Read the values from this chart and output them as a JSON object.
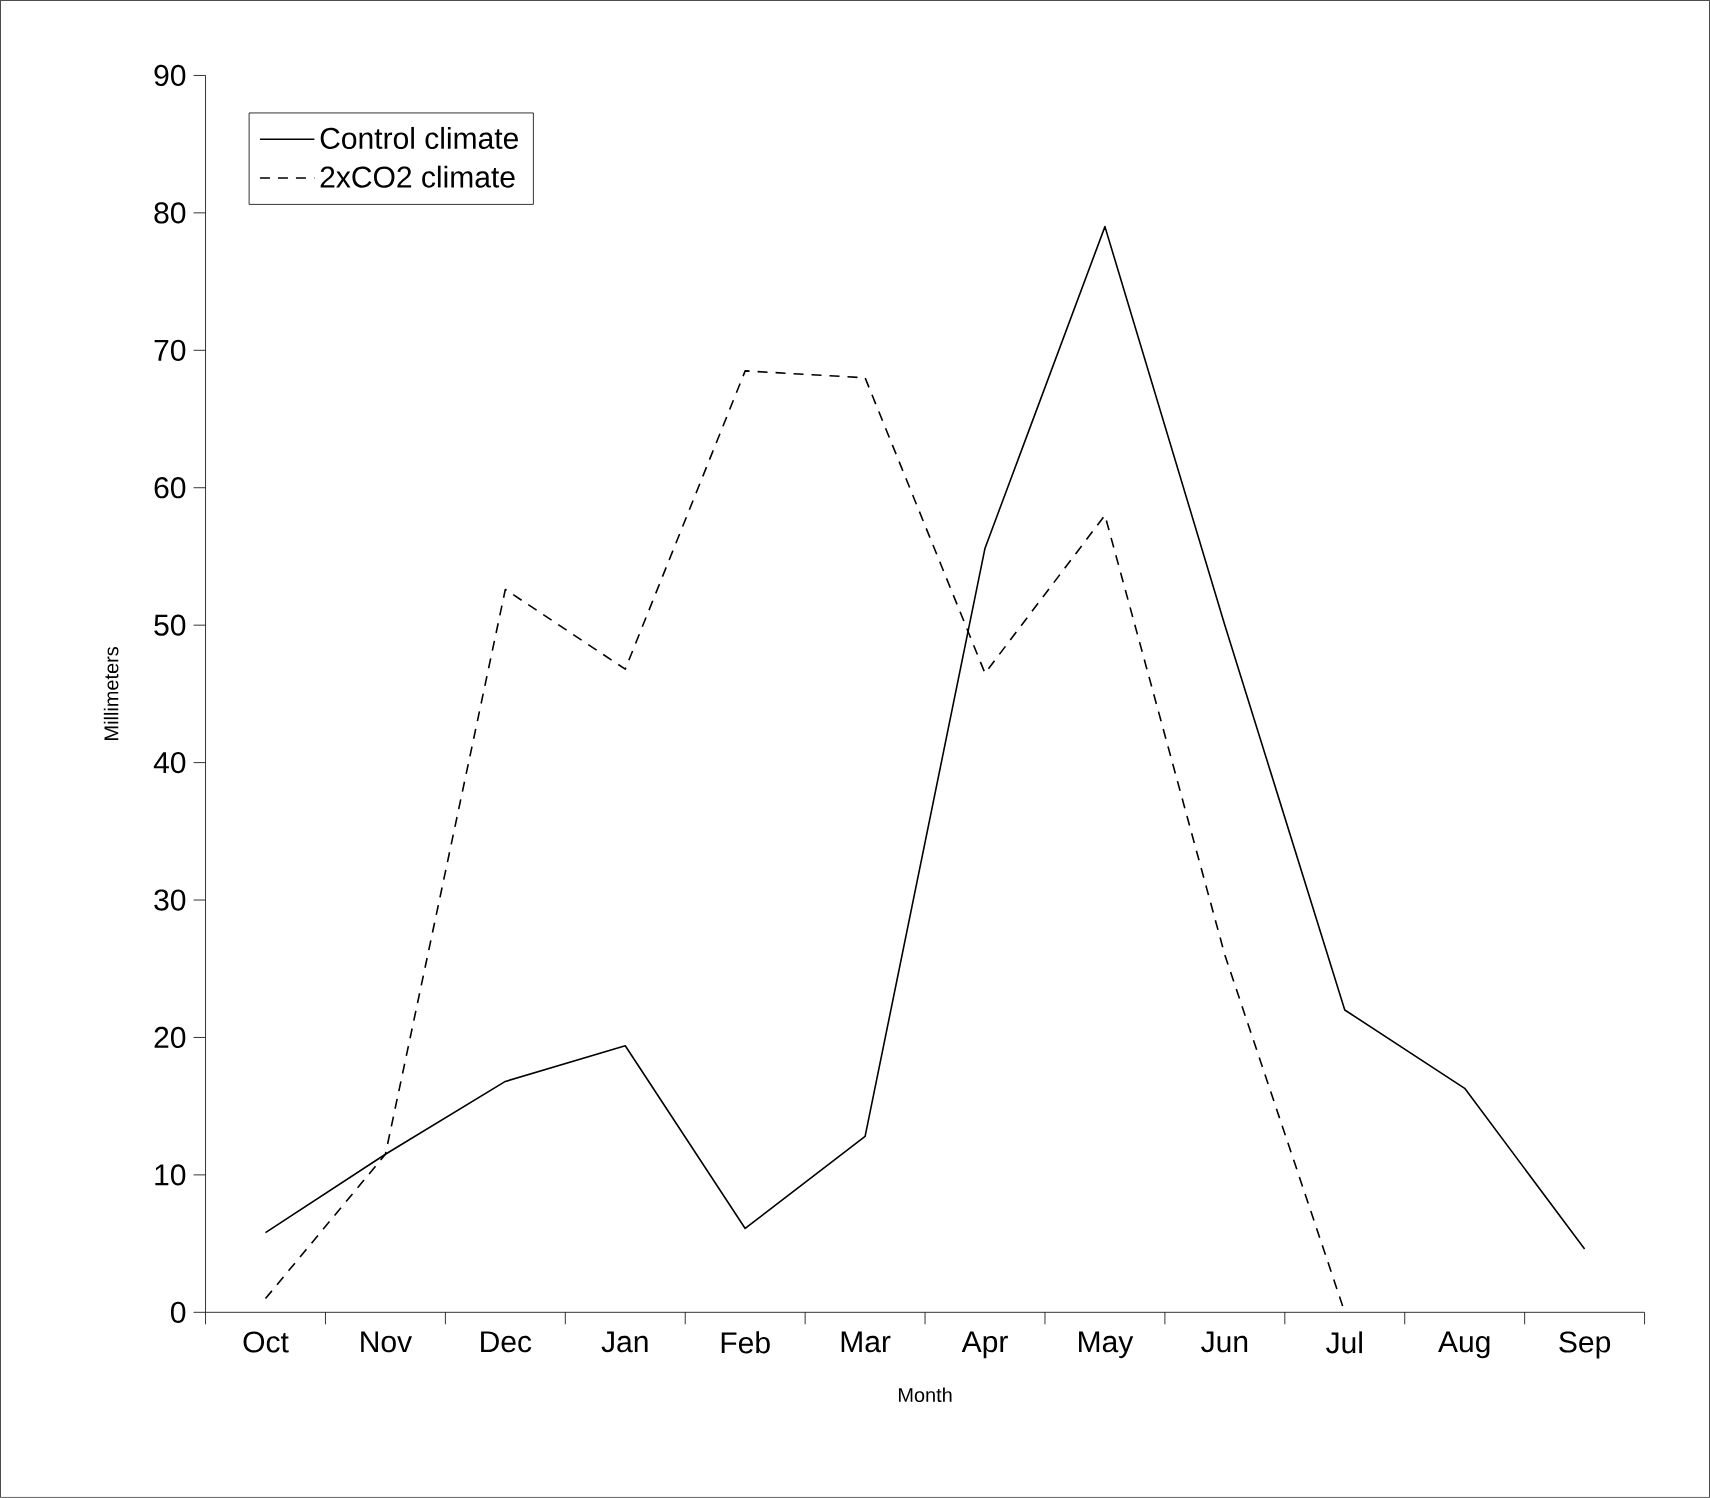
{
  "chart_data": {
    "type": "line",
    "xlabel": "Month",
    "ylabel": "Millimeters",
    "categories": [
      "Oct",
      "Nov",
      "Dec",
      "Jan",
      "Feb",
      "Mar",
      "Apr",
      "May",
      "Jun",
      "Jul",
      "Aug",
      "Sep"
    ],
    "series": [
      {
        "name": "Control climate",
        "color": "#000000",
        "line_style": "solid",
        "values": [
          5.8,
          11.5,
          16.8,
          19.4,
          6.1,
          12.8,
          55.6,
          79,
          50,
          22,
          16.3,
          4.6
        ]
      },
      {
        "name": "2xCO2 climate",
        "color": "#000000",
        "line_style": "dashed",
        "values": [
          1,
          11.5,
          52.6,
          46.8,
          68.5,
          68,
          46.5,
          58,
          26,
          0,
          null,
          null
        ]
      }
    ],
    "ylim": [
      0,
      90
    ],
    "yticks": [
      0,
      10,
      20,
      30,
      40,
      50,
      60,
      70,
      80,
      90
    ],
    "grid": false,
    "legend": "top left",
    "marker": "none"
  }
}
